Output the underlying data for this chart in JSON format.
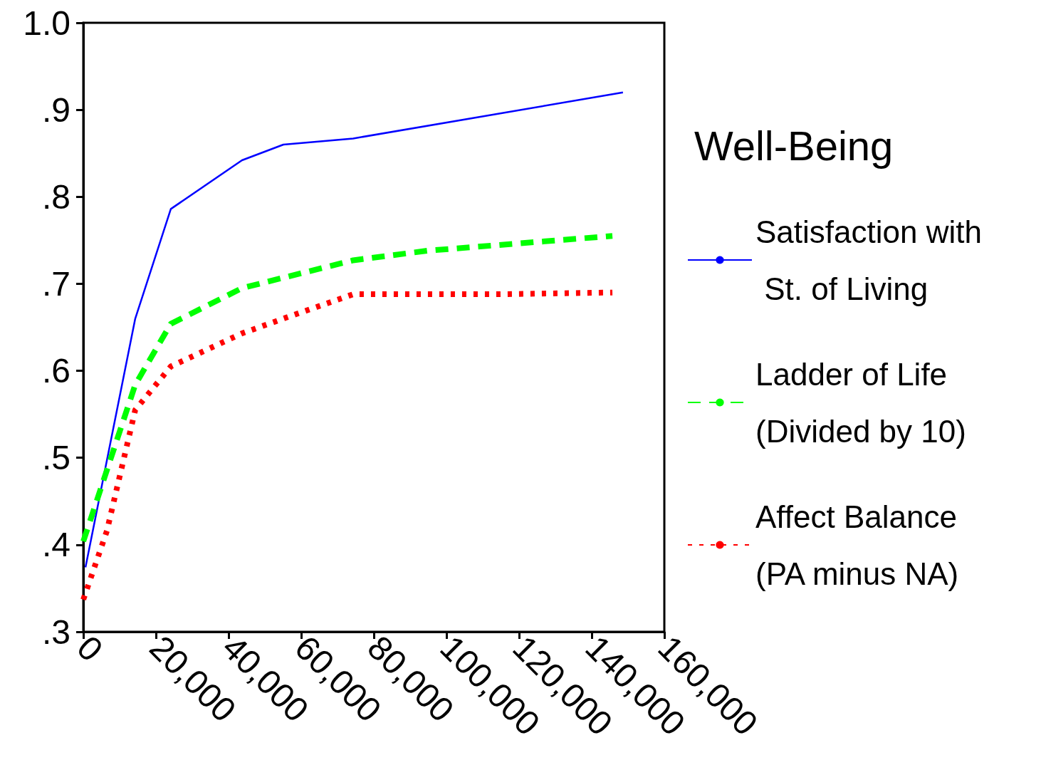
{
  "chart_data": {
    "type": "line",
    "legend_title": "Well-Being",
    "legend": "right",
    "grid": false,
    "marker": "none",
    "xlim": [
      0,
      160000
    ],
    "xticks": [
      {
        "value": 0,
        "label": "0"
      },
      {
        "value": 20000,
        "label": "20,000"
      },
      {
        "value": 40000,
        "label": "40,000"
      },
      {
        "value": 60000,
        "label": "60,000"
      },
      {
        "value": 80000,
        "label": "80,000"
      },
      {
        "value": 100000,
        "label": "100,000"
      },
      {
        "value": 120000,
        "label": "120,000"
      },
      {
        "value": 140000,
        "label": "140,000"
      },
      {
        "value": 160000,
        "label": "160,000"
      }
    ],
    "ylim": [
      0.3,
      1.0
    ],
    "yticks": [
      {
        "value": 0.3,
        "label": ".3"
      },
      {
        "value": 0.4,
        "label": ".4"
      },
      {
        "value": 0.5,
        "label": ".5"
      },
      {
        "value": 0.6,
        "label": ".6"
      },
      {
        "value": 0.7,
        "label": ".7"
      },
      {
        "value": 0.8,
        "label": ".8"
      },
      {
        "value": 0.9,
        "label": ".9"
      },
      {
        "value": 1.0,
        "label": "1.0"
      }
    ],
    "series": [
      {
        "name": "Satisfaction with St. of Living",
        "color": "#0000ff",
        "line_style": "solid",
        "x": [
          600,
          14300,
          24100,
          43700,
          55100,
          74300,
          148600
        ],
        "values": [
          0.374,
          0.66,
          0.786,
          0.842,
          0.86,
          0.867,
          0.92
        ]
      },
      {
        "name": "Ladder of Life (Divided by 10)",
        "color": "#00ff00",
        "line_style": "dashed",
        "x": [
          0,
          14300,
          24100,
          43700,
          55100,
          74300,
          94700,
          145700
        ],
        "values": [
          0.404,
          0.584,
          0.654,
          0.695,
          0.707,
          0.727,
          0.738,
          0.755
        ]
      },
      {
        "name": "Affect Balance (PA minus NA)",
        "color": "#ff0000",
        "line_style": "dotted",
        "x": [
          0,
          6500,
          14300,
          24100,
          43700,
          55100,
          74300,
          114300,
          145700
        ],
        "values": [
          0.337,
          0.416,
          0.555,
          0.605,
          0.643,
          0.66,
          0.688,
          0.688,
          0.69
        ]
      }
    ]
  }
}
